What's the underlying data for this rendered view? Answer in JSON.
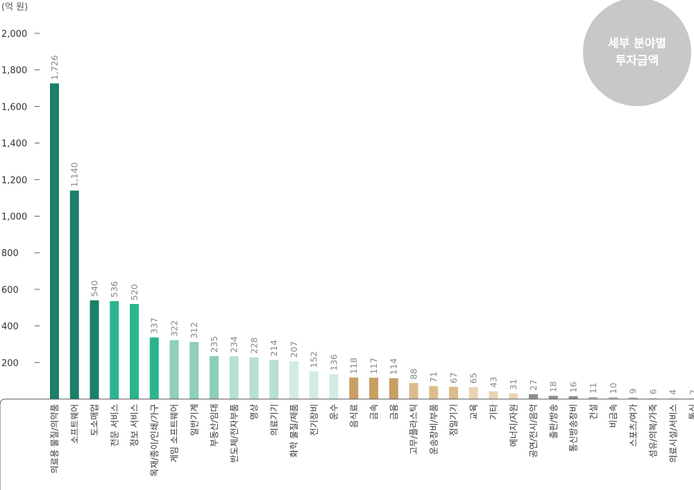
{
  "badge": {
    "line1": "세부 분야별",
    "line2": "투자금액",
    "color": "#c8c8c8"
  },
  "chart_data": {
    "type": "bar",
    "unit": "(억 원)",
    "ylim": [
      0,
      2000
    ],
    "yticks": [
      "2,000",
      "1,800",
      "1,600",
      "1,400",
      "1,200",
      "1,000",
      "800",
      "600",
      "400",
      "200"
    ],
    "ytick_values": [
      2000,
      1800,
      1600,
      1400,
      1200,
      1000,
      800,
      600,
      400,
      200
    ],
    "categories": [
      "의료용 물질/의약품",
      "소프트웨어",
      "도소매업",
      "전문 서비스",
      "정보 서비스",
      "목재/종이/인쇄/가구",
      "게임 소프트웨어",
      "일반기계",
      "부동산/임대",
      "반도체/전자부품",
      "영상",
      "의료기기",
      "화학 물질/제품",
      "전기장비",
      "운수",
      "음식료",
      "금속",
      "금융",
      "고무/플라스틱",
      "운송장비/부품",
      "정밀기기",
      "교육",
      "기타",
      "에너지/자원",
      "공연/전시/음악",
      "출판/방송",
      "통신방송장비",
      "건설",
      "비금속",
      "스포츠/여가",
      "섬유/의복/가죽",
      "의료시설/서비스",
      "통신"
    ],
    "values": [
      1726,
      1140,
      540,
      536,
      520,
      337,
      322,
      312,
      235,
      234,
      228,
      214,
      207,
      152,
      136,
      118,
      117,
      114,
      88,
      71,
      67,
      65,
      43,
      31,
      27,
      18,
      16,
      11,
      10,
      9,
      6,
      4,
      2
    ],
    "value_labels": [
      "1,726",
      "1,140",
      "540",
      "536",
      "520",
      "337",
      "322",
      "312",
      "235",
      "234",
      "228",
      "214",
      "207",
      "152",
      "136",
      "118",
      "117",
      "114",
      "88",
      "71",
      "67",
      "65",
      "43",
      "31",
      "27",
      "18",
      "16",
      "11",
      "10",
      "9",
      "6",
      "4",
      "2"
    ],
    "colors": [
      "#1b7f6a",
      "#1b7f6a",
      "#1b7f6a",
      "#2bb58f",
      "#2bb58f",
      "#2bb58f",
      "#8dcfb8",
      "#8dcfb8",
      "#8dcfb8",
      "#b6e0d0",
      "#b6e0d0",
      "#b6e0d0",
      "#d2ece3",
      "#d2ece3",
      "#d2ece3",
      "#c9a063",
      "#c9a063",
      "#c9a063",
      "#dcbc8c",
      "#dcbc8c",
      "#dcbc8c",
      "#ebd4b3",
      "#ebd4b3",
      "#ebd4b3",
      "#8f8f8f",
      "#8f8f8f",
      "#8f8f8f",
      "#b2b2b2",
      "#b2b2b2",
      "#b2b2b2",
      "#d0d0d0",
      "#d0d0d0",
      "#d0d0d0"
    ],
    "grid": false,
    "legend": "none"
  }
}
